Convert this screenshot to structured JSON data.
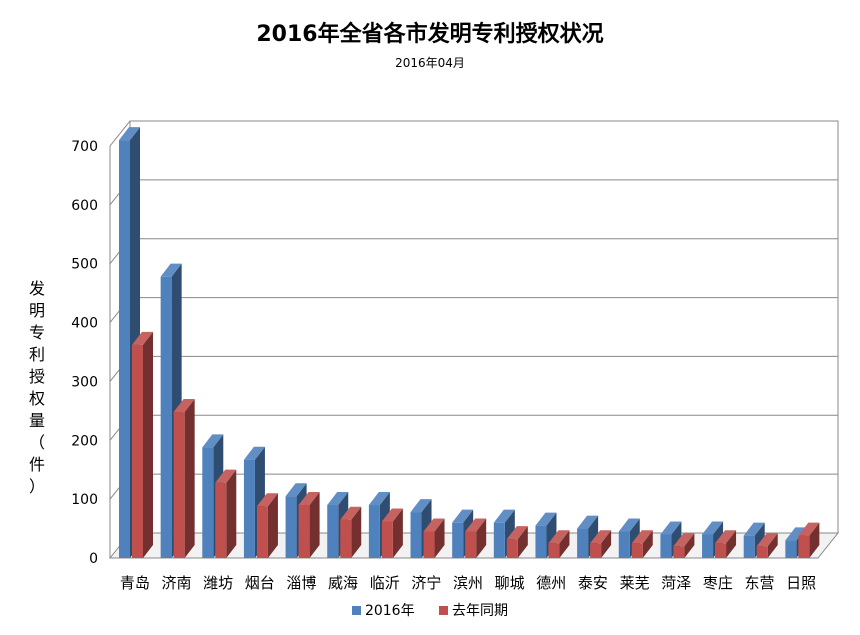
{
  "chart_data": {
    "type": "bar",
    "title": "2016年全省各市发明专利授权状况",
    "subtitle": "2016年04月",
    "ylabel": "发明专利授权量（件）",
    "ylim": [
      0,
      700
    ],
    "yticks": [
      0,
      100,
      200,
      300,
      400,
      500,
      600,
      700
    ],
    "grid": true,
    "legend_position": "bottom",
    "categories": [
      "青岛",
      "济南",
      "潍坊",
      "烟台",
      "淄博",
      "威海",
      "临沂",
      "济宁",
      "滨州",
      "聊城",
      "德州",
      "泰安",
      "莱芜",
      "菏泽",
      "枣庄",
      "东营",
      "日照"
    ],
    "series": [
      {
        "name": "2016年",
        "color": "#4F81BD",
        "values": [
          710,
          478,
          188,
          167,
          105,
          90,
          90,
          78,
          60,
          60,
          55,
          50,
          45,
          40,
          40,
          38,
          30
        ]
      },
      {
        "name": "去年同期",
        "color": "#C0504D",
        "values": [
          362,
          248,
          128,
          88,
          90,
          65,
          62,
          45,
          45,
          32,
          25,
          25,
          25,
          20,
          25,
          20,
          38
        ]
      }
    ]
  }
}
